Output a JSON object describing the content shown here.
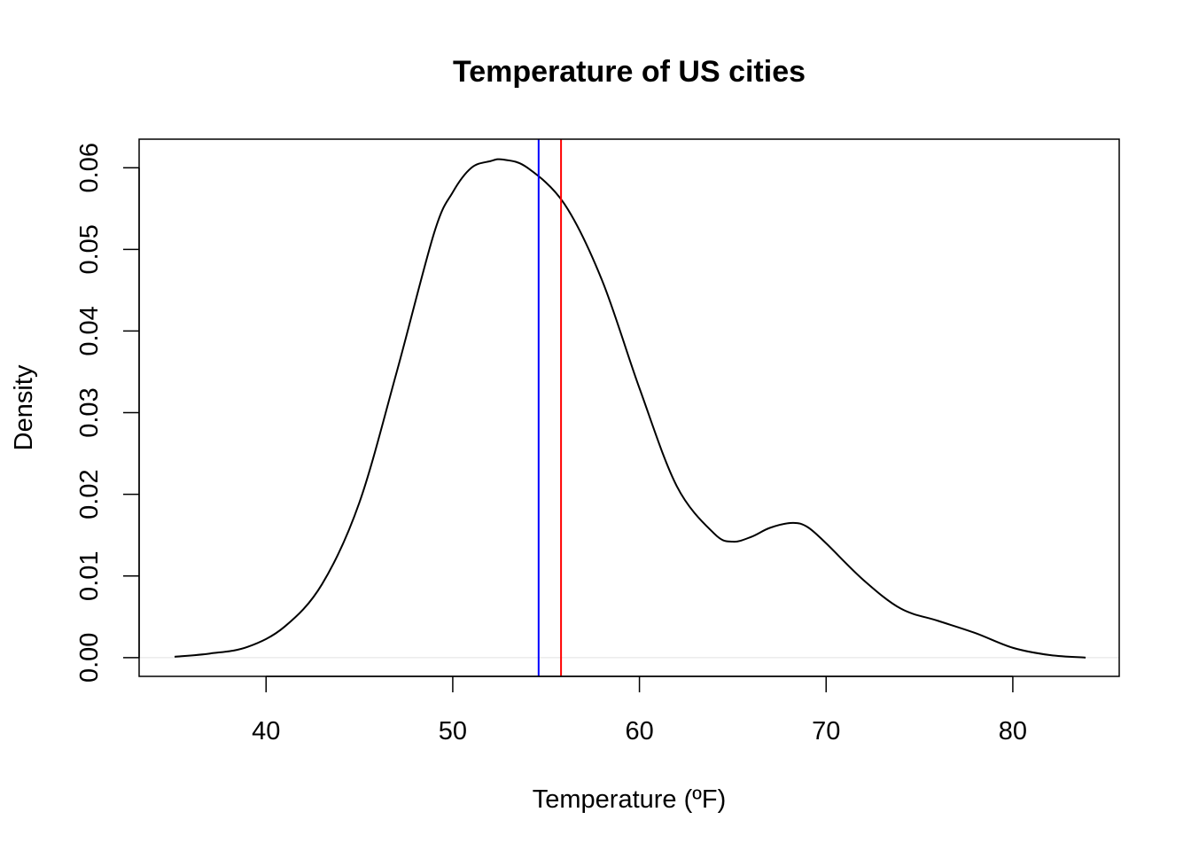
{
  "chart_data": {
    "type": "line",
    "title": "Temperature of US cities",
    "xlabel": "Temperature (ºF)",
    "ylabel": "Density",
    "xlim": [
      33.2,
      85.7
    ],
    "ylim": [
      -0.0023,
      0.0635
    ],
    "x_ticks": [
      40,
      50,
      60,
      70,
      80
    ],
    "x_tick_labels": [
      "40",
      "50",
      "60",
      "70",
      "80"
    ],
    "y_ticks": [
      0.0,
      0.01,
      0.02,
      0.03,
      0.04,
      0.05,
      0.06
    ],
    "y_tick_labels": [
      "0.00",
      "0.01",
      "0.02",
      "0.03",
      "0.04",
      "0.05",
      "0.06"
    ],
    "grid": false,
    "legend": "none",
    "baseline": {
      "y": 0,
      "color": "#e0e0e0"
    },
    "series": [
      {
        "color": "#000000",
        "x": [
          35.1,
          37,
          39,
          41,
          43,
          45,
          47,
          49,
          50,
          51,
          52,
          52.7,
          54,
          56,
          58,
          60,
          62,
          64,
          65,
          66,
          67,
          68.2,
          69,
          70,
          72,
          74,
          76,
          78,
          80,
          82,
          83.9
        ],
        "y": [
          0.0001,
          0.0005,
          0.0013,
          0.0038,
          0.009,
          0.019,
          0.035,
          0.052,
          0.057,
          0.06,
          0.0608,
          0.061,
          0.06,
          0.0555,
          0.0462,
          0.033,
          0.021,
          0.0152,
          0.0142,
          0.0148,
          0.0159,
          0.0165,
          0.016,
          0.014,
          0.0095,
          0.006,
          0.0045,
          0.003,
          0.0012,
          0.0003,
          0.0
        ]
      }
    ],
    "vlines": [
      {
        "x": 54.6,
        "color": "#0000ff"
      },
      {
        "x": 55.8,
        "color": "#ff0000"
      }
    ]
  }
}
